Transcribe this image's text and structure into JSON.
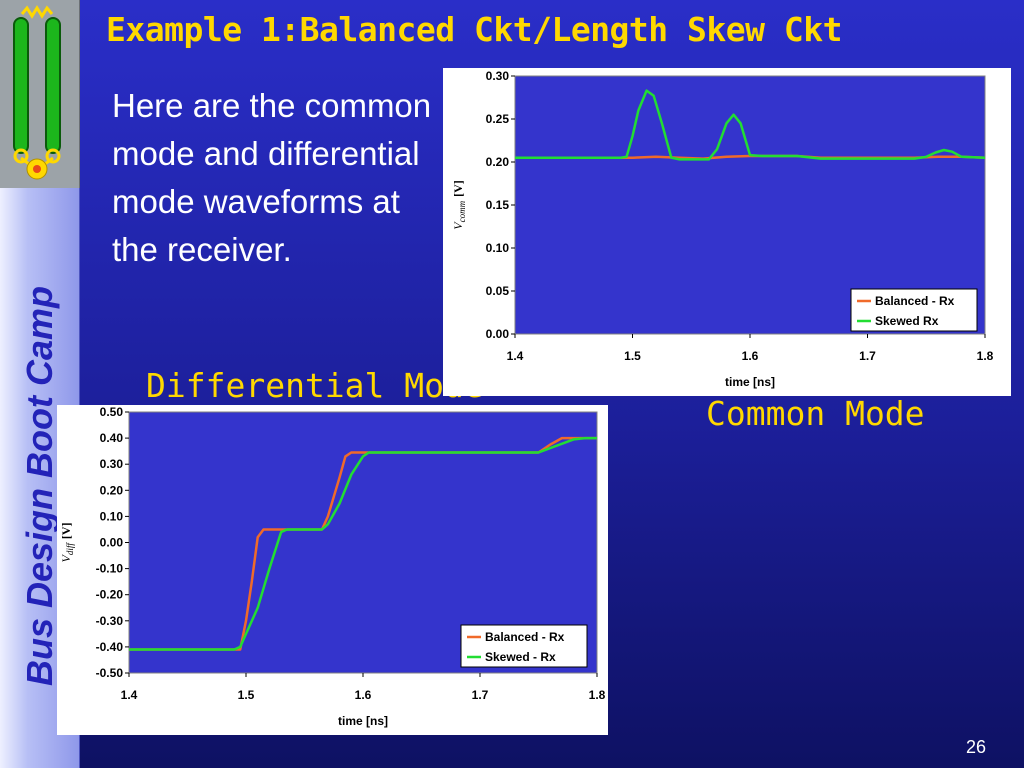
{
  "slide": {
    "title": "Example 1:Balanced Ckt/Length Skew Ckt",
    "body_text": "Here are the common mode and differential mode waveforms at the receiver.",
    "sidebar_label": "Bus Design Boot Camp",
    "caption_differential": "Differential Mode",
    "caption_common": "Common Mode",
    "page_number": "26"
  },
  "colors": {
    "balanced": "#f06a2a",
    "skewed": "#22dd33",
    "title": "#ffd800",
    "plot_area": "#3434cc"
  },
  "chart_data": [
    {
      "id": "common-mode",
      "type": "line",
      "xlabel": "time [ns]",
      "ylabel_main": "V",
      "ylabel_sub": "comm",
      "ylabel_unit": "[V]",
      "xlim": [
        1.4,
        1.8
      ],
      "ylim": [
        0.0,
        0.3
      ],
      "xticks": [
        1.4,
        1.5,
        1.6,
        1.7,
        1.8
      ],
      "xtick_labels": [
        "1.4",
        "1.5",
        "1.6",
        "1.7",
        "1.8"
      ],
      "yticks": [
        0.0,
        0.05,
        0.1,
        0.15,
        0.2,
        0.25,
        0.3
      ],
      "ytick_labels": [
        "0.00",
        "0.05",
        "0.10",
        "0.15",
        "0.20",
        "0.25",
        "0.30"
      ],
      "grid": false,
      "legend_position": "bottom-right",
      "series": [
        {
          "name": "Balanced - Rx",
          "color": "#f06a2a",
          "points": [
            [
              1.4,
              0.205
            ],
            [
              1.49,
              0.205
            ],
            [
              1.5,
              0.205
            ],
            [
              1.52,
              0.206
            ],
            [
              1.54,
              0.205
            ],
            [
              1.56,
              0.204
            ],
            [
              1.58,
              0.206
            ],
            [
              1.6,
              0.207
            ],
            [
              1.64,
              0.207
            ],
            [
              1.66,
              0.205
            ],
            [
              1.7,
              0.205
            ],
            [
              1.74,
              0.205
            ],
            [
              1.76,
              0.206
            ],
            [
              1.78,
              0.206
            ],
            [
              1.8,
              0.205
            ]
          ]
        },
        {
          "name": "Skewed Rx",
          "color": "#22dd33",
          "points": [
            [
              1.4,
              0.205
            ],
            [
              1.49,
              0.205
            ],
            [
              1.495,
              0.206
            ],
            [
              1.5,
              0.23
            ],
            [
              1.505,
              0.26
            ],
            [
              1.512,
              0.283
            ],
            [
              1.518,
              0.277
            ],
            [
              1.525,
              0.245
            ],
            [
              1.533,
              0.205
            ],
            [
              1.54,
              0.203
            ],
            [
              1.565,
              0.203
            ],
            [
              1.572,
              0.215
            ],
            [
              1.58,
              0.245
            ],
            [
              1.586,
              0.255
            ],
            [
              1.592,
              0.245
            ],
            [
              1.6,
              0.208
            ],
            [
              1.61,
              0.207
            ],
            [
              1.64,
              0.207
            ],
            [
              1.66,
              0.204
            ],
            [
              1.7,
              0.204
            ],
            [
              1.74,
              0.204
            ],
            [
              1.75,
              0.206
            ],
            [
              1.758,
              0.211
            ],
            [
              1.765,
              0.214
            ],
            [
              1.772,
              0.212
            ],
            [
              1.78,
              0.206
            ],
            [
              1.8,
              0.205
            ]
          ]
        }
      ]
    },
    {
      "id": "differential-mode",
      "type": "line",
      "xlabel": "time [ns]",
      "ylabel_main": "V",
      "ylabel_sub": "diff",
      "ylabel_unit": "[V]",
      "xlim": [
        1.4,
        1.8
      ],
      "ylim": [
        -0.5,
        0.5
      ],
      "xticks": [
        1.4,
        1.5,
        1.6,
        1.7,
        1.8
      ],
      "xtick_labels": [
        "1.4",
        "1.5",
        "1.6",
        "1.7",
        "1.8"
      ],
      "yticks": [
        -0.5,
        -0.4,
        -0.3,
        -0.2,
        -0.1,
        0.0,
        0.1,
        0.2,
        0.3,
        0.4,
        0.5
      ],
      "ytick_labels": [
        "-0.50",
        "-0.40",
        "-0.30",
        "-0.20",
        "-0.10",
        "0.00",
        "0.10",
        "0.20",
        "0.30",
        "0.40",
        "0.50"
      ],
      "grid": false,
      "legend_position": "bottom-right",
      "series": [
        {
          "name": "Balanced - Rx",
          "color": "#f06a2a",
          "points": [
            [
              1.4,
              -0.41
            ],
            [
              1.49,
              -0.41
            ],
            [
              1.495,
              -0.41
            ],
            [
              1.5,
              -0.3
            ],
            [
              1.505,
              -0.15
            ],
            [
              1.51,
              0.02
            ],
            [
              1.515,
              0.05
            ],
            [
              1.555,
              0.05
            ],
            [
              1.565,
              0.05
            ],
            [
              1.57,
              0.1
            ],
            [
              1.58,
              0.25
            ],
            [
              1.585,
              0.33
            ],
            [
              1.59,
              0.345
            ],
            [
              1.63,
              0.345
            ],
            [
              1.75,
              0.345
            ],
            [
              1.76,
              0.375
            ],
            [
              1.77,
              0.4
            ],
            [
              1.78,
              0.4
            ],
            [
              1.8,
              0.4
            ]
          ]
        },
        {
          "name": "Skewed - Rx",
          "color": "#22dd33",
          "points": [
            [
              1.4,
              -0.41
            ],
            [
              1.49,
              -0.41
            ],
            [
              1.495,
              -0.4
            ],
            [
              1.5,
              -0.35
            ],
            [
              1.51,
              -0.25
            ],
            [
              1.52,
              -0.1
            ],
            [
              1.53,
              0.04
            ],
            [
              1.535,
              0.05
            ],
            [
              1.565,
              0.05
            ],
            [
              1.57,
              0.07
            ],
            [
              1.58,
              0.15
            ],
            [
              1.59,
              0.26
            ],
            [
              1.6,
              0.33
            ],
            [
              1.605,
              0.345
            ],
            [
              1.63,
              0.345
            ],
            [
              1.75,
              0.345
            ],
            [
              1.765,
              0.37
            ],
            [
              1.78,
              0.395
            ],
            [
              1.79,
              0.4
            ],
            [
              1.8,
              0.4
            ]
          ]
        }
      ]
    }
  ]
}
